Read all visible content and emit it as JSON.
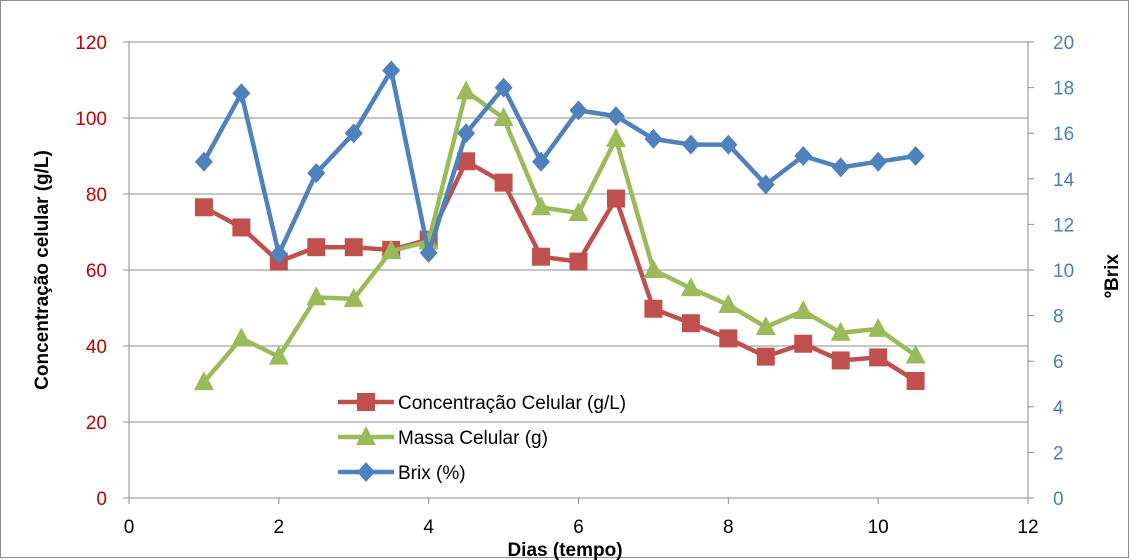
{
  "chart_data": {
    "type": "line",
    "xlabel": "Dias (tempo)",
    "ylabel": "Concentração celular (g/L)",
    "y2label": "ºBrix",
    "xlim": [
      0,
      12
    ],
    "ylim": [
      0,
      120
    ],
    "y2lim": [
      0,
      20
    ],
    "x_ticks": [
      "0",
      "2",
      "4",
      "6",
      "8",
      "10",
      "12"
    ],
    "y_ticks": [
      "0",
      "20",
      "40",
      "60",
      "80",
      "100",
      "120"
    ],
    "y2_ticks": [
      "0",
      "2",
      "4",
      "6",
      "8",
      "10",
      "12",
      "14",
      "16",
      "18",
      "20"
    ],
    "grid": "horizontal",
    "legend_position": "bottom-center",
    "series": [
      {
        "name": "Concentração Celular (g/L)",
        "axis": "left",
        "color": "#c0504d",
        "marker": "square",
        "x": [
          1,
          1.5,
          2,
          2.5,
          3,
          3.5,
          4,
          4.5,
          5,
          5.5,
          6,
          6.5,
          7,
          7.5,
          8,
          8.5,
          9,
          9.5,
          10,
          10.5
        ],
        "values": [
          76.5,
          71.2,
          62.2,
          66.0,
          66.0,
          65.3,
          68.0,
          88.6,
          83.0,
          63.5,
          62.2,
          78.8,
          49.8,
          46.0,
          42.0,
          37.2,
          40.6,
          36.2,
          37.0,
          30.8
        ]
      },
      {
        "name": "Massa Celular (g)",
        "axis": "left",
        "color": "#9bbb59",
        "marker": "triangle",
        "x": [
          1,
          1.5,
          2,
          2.5,
          3,
          3.5,
          4,
          4.5,
          5,
          5.5,
          6,
          6.5,
          7,
          7.5,
          8,
          8.5,
          9,
          9.5,
          10,
          10.5
        ],
        "values": [
          30.5,
          42.0,
          37.2,
          52.8,
          52.4,
          65.0,
          67.5,
          107.0,
          100.0,
          76.5,
          75.0,
          94.5,
          60.0,
          55.2,
          50.8,
          45.0,
          49.2,
          43.5,
          44.5,
          37.5
        ]
      },
      {
        "name": "Brix (%)",
        "axis": "right",
        "color": "#4f81bd",
        "marker": "diamond",
        "x": [
          1,
          1.5,
          2,
          2.5,
          3,
          3.5,
          4,
          4.5,
          5,
          5.5,
          6,
          6.5,
          7,
          7.5,
          8,
          8.5,
          9,
          9.5,
          10,
          10.5
        ],
        "values": [
          14.75,
          17.75,
          10.7,
          14.25,
          16.0,
          18.75,
          10.75,
          16.0,
          18.0,
          14.75,
          17.0,
          16.75,
          15.75,
          15.5,
          15.5,
          13.75,
          15.0,
          14.5,
          14.75,
          15.0
        ]
      }
    ]
  }
}
